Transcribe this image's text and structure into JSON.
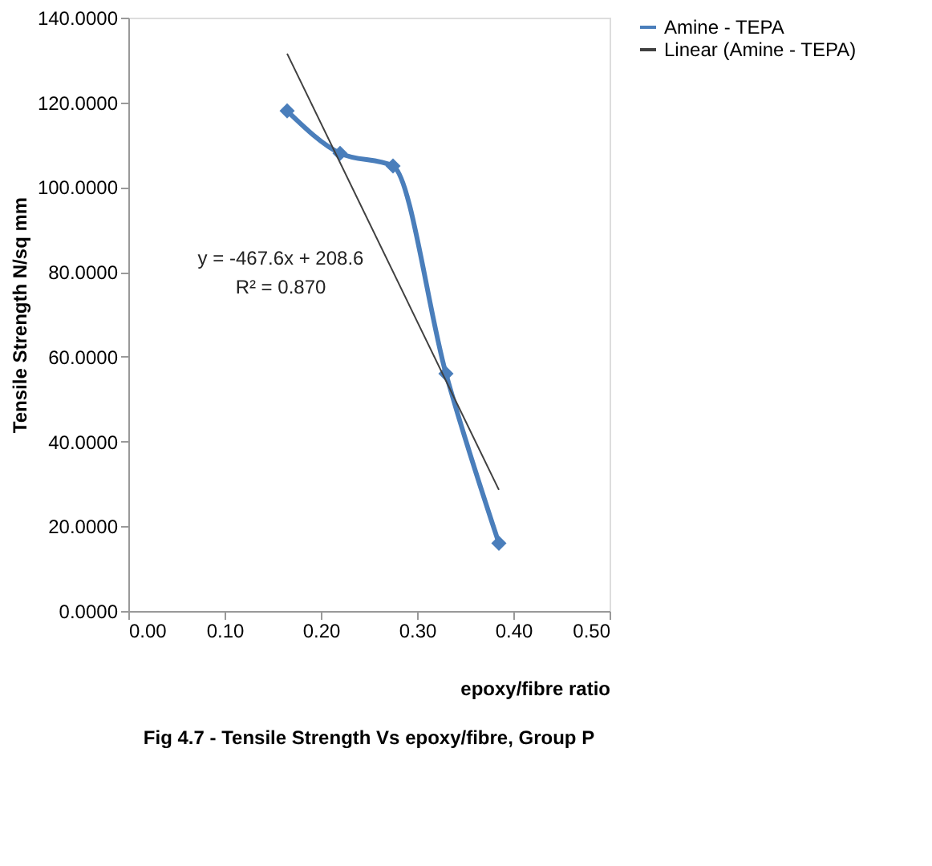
{
  "chart_data": {
    "type": "line",
    "title": "Fig 4.7 - Tensile Strength Vs epoxy/fibre, Group P",
    "xlabel": "epoxy/fibre ratio",
    "ylabel": "Tensile Strength N/sq mm",
    "x": [
      0.165,
      0.22,
      0.275,
      0.33,
      0.385
    ],
    "series": [
      {
        "name": "Amine - TEPA",
        "color": "#4a7ebb",
        "values": [
          118,
          108,
          105,
          56,
          16
        ],
        "marker": "diamond",
        "line_style": "solid"
      },
      {
        "name": "Linear (Amine - TEPA)",
        "color": "#404040",
        "x": [
          0.165,
          0.385
        ],
        "values": [
          131.5,
          28.6
        ],
        "marker": "none",
        "line_style": "solid"
      }
    ],
    "xlim": [
      0,
      0.5
    ],
    "xticks": [
      {
        "value": 0,
        "label": "0.00"
      },
      {
        "value": 0.1,
        "label": "0.10"
      },
      {
        "value": 0.2,
        "label": "0.20"
      },
      {
        "value": 0.3,
        "label": "0.30"
      },
      {
        "value": 0.4,
        "label": "0.40"
      },
      {
        "value": 0.5,
        "label": "0.50"
      }
    ],
    "ylim": [
      0,
      140
    ],
    "yticks": [
      {
        "value": 0,
        "label": "0.0000"
      },
      {
        "value": 20,
        "label": "20.0000"
      },
      {
        "value": 40,
        "label": "40.0000"
      },
      {
        "value": 60,
        "label": "60.0000"
      },
      {
        "value": 80,
        "label": "80.0000"
      },
      {
        "value": 100,
        "label": "100.0000"
      },
      {
        "value": 120,
        "label": "120.0000"
      },
      {
        "value": 140,
        "label": "140.0000"
      }
    ],
    "annotations": [
      "y = -467.6x + 208.6",
      "R² = 0.870"
    ],
    "grid": false,
    "legend": "right"
  }
}
